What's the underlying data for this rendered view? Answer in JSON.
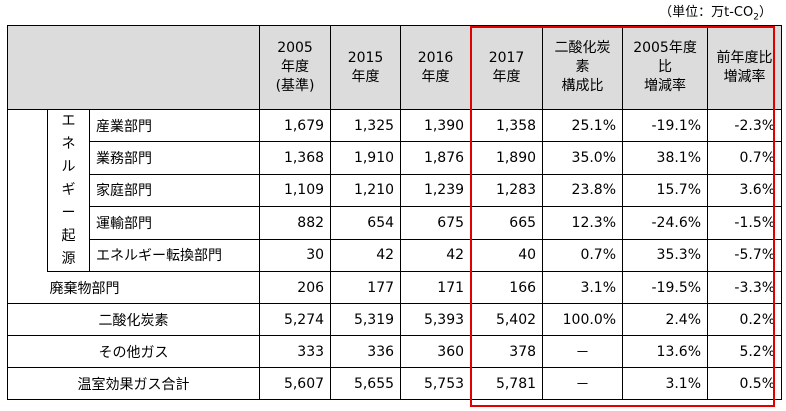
{
  "unit_label": {
    "text": "（単位：万t-CO",
    "subscript": "2",
    "suffix": "）"
  },
  "colors": {
    "header_bg": "#dcdcdc",
    "highlight_border": "#e00000"
  },
  "headers": {
    "y2005": "2005\n年度\n(基準)",
    "y2015": "2015\n年度",
    "y2016": "2016\n年度",
    "y2017": "2017\n年度",
    "co2_share": "二酸化炭\n素\n構成比",
    "vs_2005": "2005年度\n比\n増減率",
    "vs_prev": "前年度比\n増減率"
  },
  "energy_origin_label": [
    "エ",
    "ネ",
    "ル",
    "ギ",
    "ー",
    "起",
    "源"
  ],
  "energy_rows": [
    {
      "label": "産業部門",
      "values": [
        "1,679",
        "1,325",
        "1,390",
        "1,358",
        "25.1%",
        "-19.1%",
        "-2.3%"
      ]
    },
    {
      "label": "業務部門",
      "values": [
        "1,368",
        "1,910",
        "1,876",
        "1,890",
        "35.0%",
        "38.1%",
        "0.7%"
      ]
    },
    {
      "label": "家庭部門",
      "values": [
        "1,109",
        "1,210",
        "1,239",
        "1,283",
        "23.8%",
        "15.7%",
        "3.6%"
      ]
    },
    {
      "label": "運輸部門",
      "values": [
        "882",
        "654",
        "675",
        "665",
        "12.3%",
        "-24.6%",
        "-1.5%"
      ]
    },
    {
      "label": "エネルギー転換部門",
      "values": [
        "30",
        "42",
        "42",
        "40",
        "0.7%",
        "35.3%",
        "-5.7%"
      ]
    }
  ],
  "waste_row": {
    "label": "廃棄物部門",
    "values": [
      "206",
      "177",
      "171",
      "166",
      "3.1%",
      "-19.5%",
      "-3.3%"
    ]
  },
  "total_rows": [
    {
      "label": "二酸化炭素",
      "values": [
        "5,274",
        "5,319",
        "5,393",
        "5,402",
        "100.0%",
        "2.4%",
        "0.2%"
      ]
    },
    {
      "label": "その他ガス",
      "values": [
        "333",
        "336",
        "360",
        "378",
        "－",
        "13.6%",
        "5.2%"
      ]
    },
    {
      "label": "温室効果ガス合計",
      "values": [
        "5,607",
        "5,655",
        "5,753",
        "5,781",
        "－",
        "3.1%",
        "0.5%"
      ]
    }
  ]
}
